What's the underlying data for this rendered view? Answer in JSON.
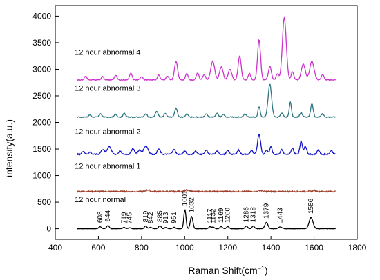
{
  "chart_data": {
    "type": "line",
    "xlabel": "Raman Shift(cm",
    "xlabel_sup": "−1",
    "xlabel_close": ")",
    "ylabel": "intensity(a.u.)",
    "xlim": [
      400,
      1800
    ],
    "ylim": [
      -200,
      4200
    ],
    "xticks": [
      400,
      600,
      800,
      1000,
      1200,
      1400,
      1600,
      1800
    ],
    "yticks": [
      0,
      500,
      1000,
      1500,
      2000,
      2500,
      3000,
      3500,
      4000
    ],
    "grid": false,
    "legend": "none",
    "series": [
      {
        "name": "12 hour normal",
        "color": "#000000",
        "baseline": 0,
        "noise": 3,
        "label_at": [
          490,
          500
        ],
        "peaks": [
          [
            608,
            40,
            6
          ],
          [
            644,
            60,
            6
          ],
          [
            719,
            25,
            6
          ],
          [
            745,
            20,
            6
          ],
          [
            819,
            50,
            6
          ],
          [
            842,
            25,
            6
          ],
          [
            885,
            55,
            6
          ],
          [
            913,
            25,
            6
          ],
          [
            951,
            30,
            6
          ],
          [
            1001,
            360,
            5
          ],
          [
            1032,
            230,
            6
          ],
          [
            1117,
            35,
            6
          ],
          [
            1132,
            30,
            6
          ],
          [
            1169,
            40,
            6
          ],
          [
            1200,
            40,
            6
          ],
          [
            1286,
            50,
            6
          ],
          [
            1318,
            50,
            6
          ],
          [
            1379,
            120,
            7
          ],
          [
            1443,
            35,
            8
          ],
          [
            1586,
            210,
            9
          ]
        ]
      },
      {
        "name": "12 hour abnormal 1",
        "color": "#a0402a",
        "baseline": 700,
        "noise": 12,
        "label_at": [
          490,
          1130
        ],
        "peaks": [
          [
            830,
            30,
            8
          ],
          [
            1010,
            25,
            8
          ],
          [
            1350,
            20,
            8
          ],
          [
            1600,
            20,
            8
          ]
        ]
      },
      {
        "name": "12 hour abnormal 2",
        "color": "#1414c8",
        "baseline": 1400,
        "noise": 10,
        "label_at": [
          490,
          1780
        ],
        "peaks": [
          [
            530,
            60,
            6
          ],
          [
            560,
            40,
            6
          ],
          [
            620,
            90,
            8
          ],
          [
            650,
            150,
            9
          ],
          [
            700,
            60,
            6
          ],
          [
            760,
            110,
            7
          ],
          [
            790,
            80,
            7
          ],
          [
            820,
            160,
            10
          ],
          [
            880,
            100,
            7
          ],
          [
            950,
            90,
            7
          ],
          [
            1000,
            60,
            6
          ],
          [
            1050,
            60,
            6
          ],
          [
            1100,
            80,
            6
          ],
          [
            1150,
            60,
            6
          ],
          [
            1200,
            70,
            6
          ],
          [
            1250,
            80,
            6
          ],
          [
            1310,
            70,
            6
          ],
          [
            1345,
            380,
            7
          ],
          [
            1380,
            80,
            6
          ],
          [
            1400,
            150,
            5
          ],
          [
            1450,
            90,
            6
          ],
          [
            1500,
            110,
            6
          ],
          [
            1540,
            240,
            6
          ],
          [
            1560,
            150,
            6
          ],
          [
            1620,
            80,
            6
          ],
          [
            1680,
            70,
            6
          ]
        ]
      },
      {
        "name": "12 hour abnormal 3",
        "color": "#2a7480",
        "baseline": 2100,
        "noise": 8,
        "label_at": [
          490,
          2600
        ],
        "peaks": [
          [
            560,
            40,
            6
          ],
          [
            610,
            60,
            6
          ],
          [
            680,
            50,
            6
          ],
          [
            720,
            70,
            6
          ],
          [
            820,
            60,
            6
          ],
          [
            870,
            110,
            6
          ],
          [
            910,
            70,
            6
          ],
          [
            960,
            170,
            6
          ],
          [
            1010,
            60,
            6
          ],
          [
            1100,
            60,
            6
          ],
          [
            1150,
            70,
            6
          ],
          [
            1180,
            50,
            6
          ],
          [
            1280,
            60,
            6
          ],
          [
            1345,
            200,
            5
          ],
          [
            1395,
            620,
            8
          ],
          [
            1450,
            80,
            6
          ],
          [
            1490,
            280,
            5
          ],
          [
            1540,
            80,
            6
          ],
          [
            1590,
            250,
            6
          ],
          [
            1640,
            60,
            6
          ]
        ]
      },
      {
        "name": "12 hour abnormal 4",
        "color": "#cc33cc",
        "baseline": 2800,
        "noise": 8,
        "label_at": [
          490,
          3270
        ],
        "peaks": [
          [
            540,
            70,
            6
          ],
          [
            620,
            60,
            6
          ],
          [
            680,
            90,
            6
          ],
          [
            750,
            130,
            6
          ],
          [
            800,
            60,
            6
          ],
          [
            880,
            90,
            6
          ],
          [
            920,
            70,
            6
          ],
          [
            960,
            350,
            7
          ],
          [
            1010,
            120,
            6
          ],
          [
            1060,
            130,
            6
          ],
          [
            1090,
            100,
            6
          ],
          [
            1130,
            350,
            9
          ],
          [
            1170,
            250,
            8
          ],
          [
            1210,
            200,
            8
          ],
          [
            1255,
            450,
            7
          ],
          [
            1300,
            120,
            6
          ],
          [
            1345,
            750,
            7
          ],
          [
            1395,
            250,
            7
          ],
          [
            1430,
            120,
            6
          ],
          [
            1462,
            1170,
            9
          ],
          [
            1500,
            150,
            6
          ],
          [
            1550,
            300,
            9
          ],
          [
            1590,
            350,
            10
          ],
          [
            1640,
            100,
            6
          ]
        ]
      }
    ],
    "peak_annotations": [
      "608",
      "644",
      "719",
      "745",
      "819",
      "842",
      "885",
      "913",
      "951",
      "1001",
      "1032",
      "1117",
      "1132",
      "1169",
      "1200",
      "1286",
      "1318",
      "1379",
      "1443",
      "1586"
    ]
  }
}
